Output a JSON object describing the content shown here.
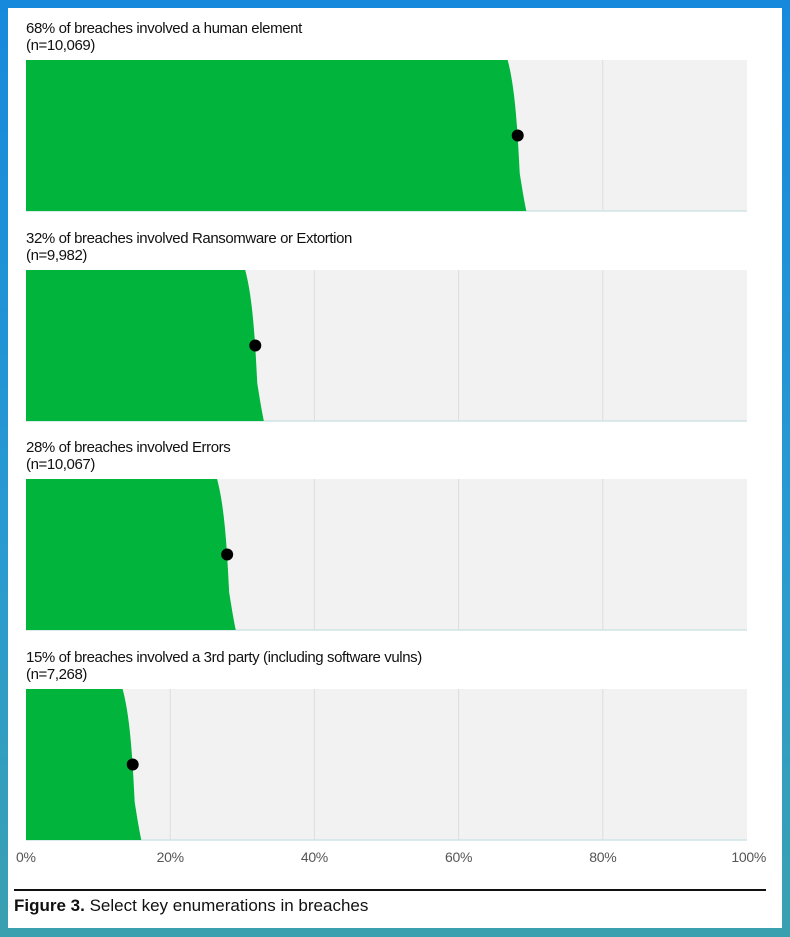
{
  "chart_data": {
    "type": "bar",
    "orientation": "horizontal",
    "panels": [
      {
        "title": "68% of breaches involved a human element",
        "n_label": "(n=10,069)",
        "value": 68,
        "estimate": 68.2
      },
      {
        "title": "32% of breaches involved Ransomware or Extortion",
        "n_label": "(n=9,982)",
        "value": 32,
        "estimate": 31.8
      },
      {
        "title": "28% of breaches involved Errors",
        "n_label": "(n=10,067)",
        "value": 28,
        "estimate": 27.9
      },
      {
        "title": "15% of breaches involved a 3rd party (including software vulns)",
        "n_label": "(n=7,268)",
        "value": 15,
        "estimate": 14.8
      }
    ],
    "x_ticks": [
      "0%",
      "20%",
      "40%",
      "60%",
      "80%",
      "100%"
    ],
    "xlim": [
      0,
      100
    ],
    "grid": true,
    "colors": {
      "bar": "#00b43c",
      "panel_bg": "#f2f2f2",
      "grid": "#dddddd",
      "dot": "#000000"
    }
  },
  "caption": {
    "label": "Figure 3.",
    "text": "Select key enumerations in breaches"
  }
}
